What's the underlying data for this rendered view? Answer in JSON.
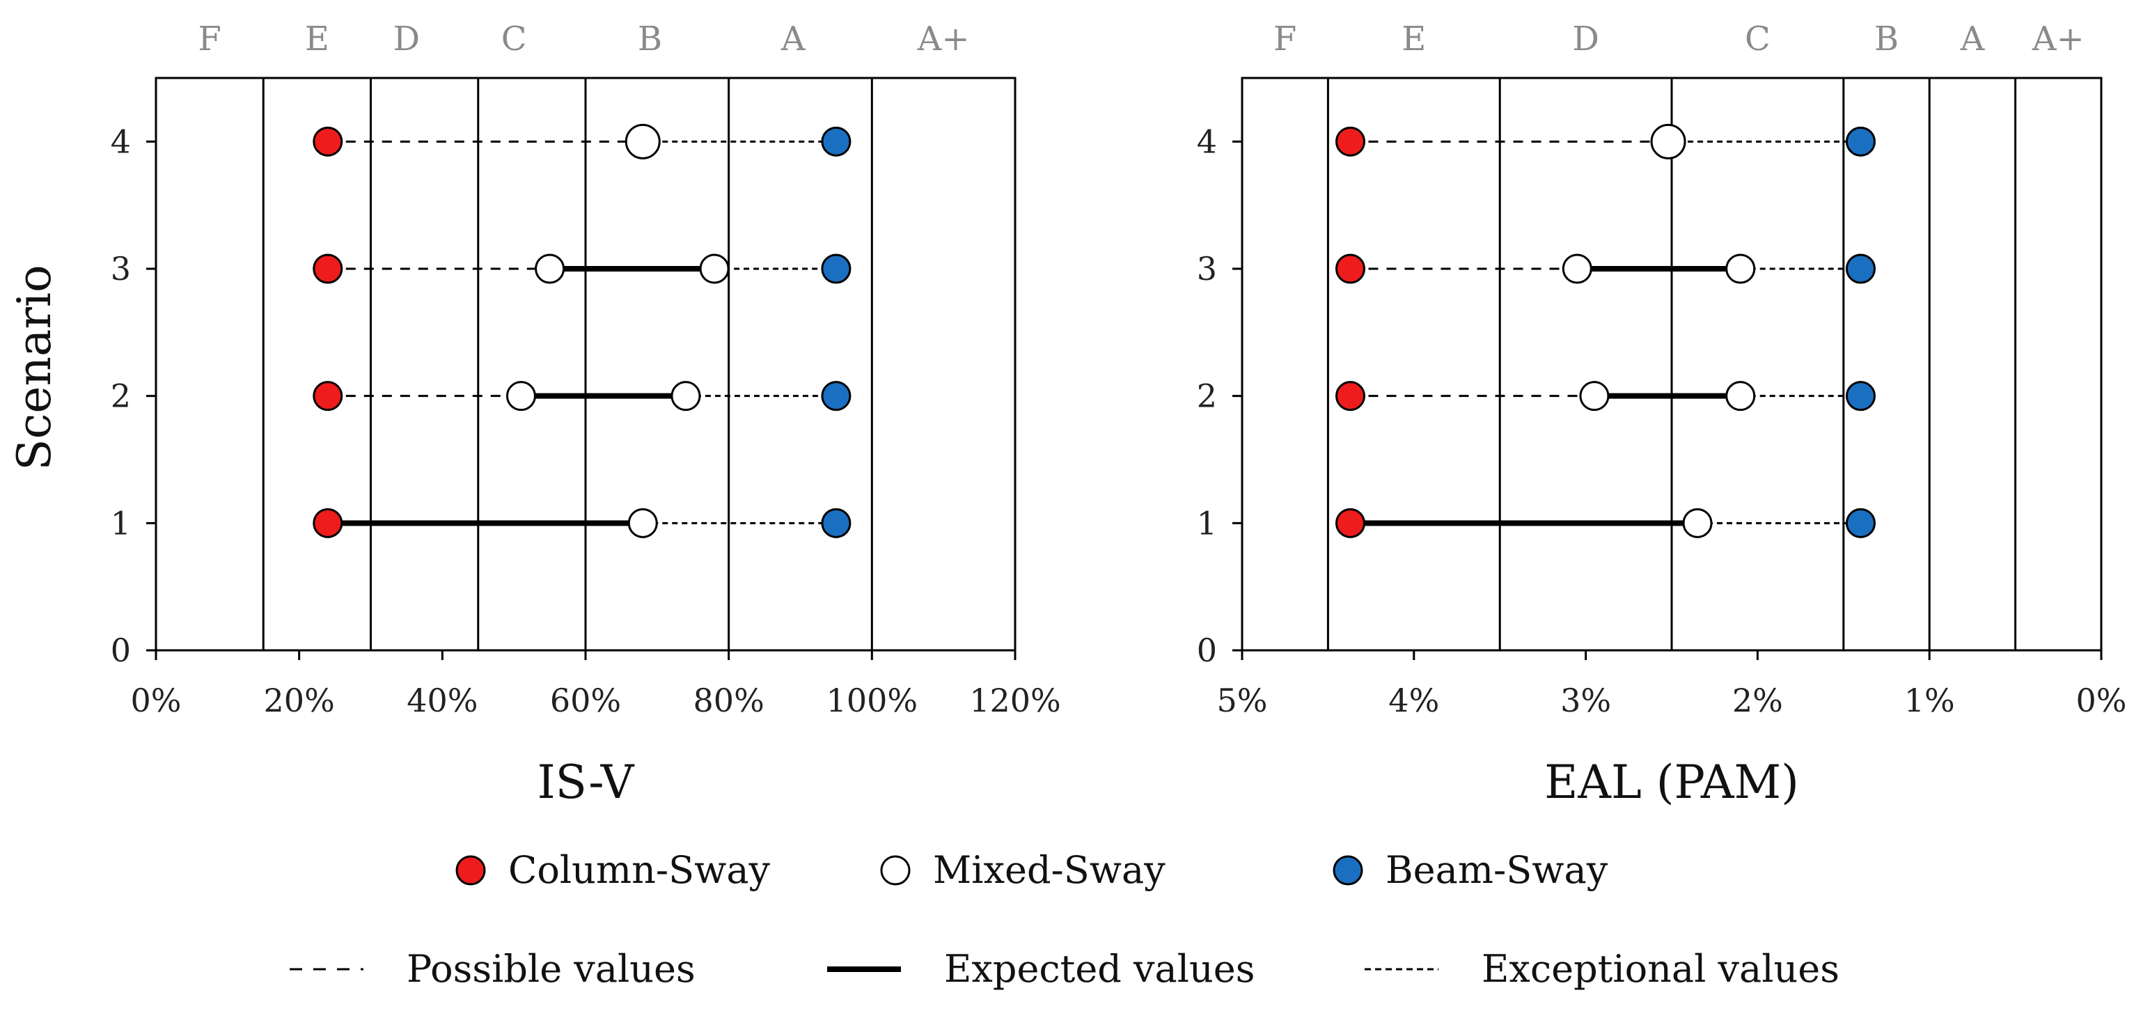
{
  "ylabel": "Scenario",
  "chart_data": [
    {
      "type": "scatter",
      "name": "is-v",
      "xlabel": "IS-V",
      "ylabel": "Scenario",
      "xlim": [
        0,
        120
      ],
      "ylim": [
        0,
        4.5
      ],
      "x_ticks": [
        0,
        20,
        40,
        60,
        80,
        100,
        120
      ],
      "x_tick_labels": [
        "0%",
        "20%",
        "40%",
        "60%",
        "80%",
        "100%",
        "120%"
      ],
      "y_ticks": [
        0,
        1,
        2,
        3,
        4
      ],
      "y_tick_labels": [
        "0",
        "1",
        "2",
        "3",
        "4"
      ],
      "class_boundaries": [
        15,
        30,
        45,
        60,
        80,
        100
      ],
      "classes": [
        {
          "label": "F",
          "x": 7.5
        },
        {
          "label": "E",
          "x": 22.5
        },
        {
          "label": "D",
          "x": 35
        },
        {
          "label": "C",
          "x": 50
        },
        {
          "label": "B",
          "x": 69
        },
        {
          "label": "A",
          "x": 89
        },
        {
          "label": "A+",
          "x": 110
        }
      ],
      "scenarios": [
        {
          "y": 1,
          "column_sway": 24,
          "mixed_sway": [
            68
          ],
          "beam_sway": 95,
          "expected": [
            24,
            68
          ],
          "possible": [],
          "exceptional": [
            68,
            95
          ]
        },
        {
          "y": 2,
          "column_sway": 24,
          "mixed_sway": [
            51,
            74
          ],
          "beam_sway": 95,
          "expected": [
            51,
            74
          ],
          "possible": [
            24,
            51
          ],
          "exceptional": [
            74,
            95
          ]
        },
        {
          "y": 3,
          "column_sway": 24,
          "mixed_sway": [
            55,
            78
          ],
          "beam_sway": 95,
          "expected": [
            55,
            78
          ],
          "possible": [
            24,
            55
          ],
          "exceptional": [
            78,
            95
          ]
        },
        {
          "y": 4,
          "column_sway": 24,
          "mixed_sway": [
            68
          ],
          "beam_sway": 95,
          "expected": [],
          "possible": [
            24,
            68
          ],
          "exceptional": [
            68,
            95
          ]
        }
      ]
    },
    {
      "type": "scatter",
      "name": "eal",
      "xlabel": "EAL (PAM)",
      "ylabel": "",
      "xlim": [
        5,
        0
      ],
      "ylim": [
        0,
        4.5
      ],
      "x_ticks": [
        5,
        4,
        3,
        2,
        1,
        0
      ],
      "x_tick_labels": [
        "5%",
        "4%",
        "3%",
        "2%",
        "1%",
        "0%"
      ],
      "y_ticks": [
        0,
        1,
        2,
        3,
        4
      ],
      "y_tick_labels": [
        "0",
        "1",
        "2",
        "3",
        "4"
      ],
      "class_boundaries": [
        4.5,
        3.5,
        2.5,
        1.5,
        1.0,
        0.5
      ],
      "classes": [
        {
          "label": "F",
          "x": 4.75
        },
        {
          "label": "E",
          "x": 4.0
        },
        {
          "label": "D",
          "x": 3.0
        },
        {
          "label": "C",
          "x": 2.0
        },
        {
          "label": "B",
          "x": 1.25
        },
        {
          "label": "A",
          "x": 0.75
        },
        {
          "label": "A+",
          "x": 0.25
        }
      ],
      "scenarios": [
        {
          "y": 1,
          "column_sway": 4.37,
          "mixed_sway": [
            2.35
          ],
          "beam_sway": 1.4,
          "expected": [
            4.37,
            2.35
          ],
          "possible": [],
          "exceptional": [
            2.35,
            1.4
          ]
        },
        {
          "y": 2,
          "column_sway": 4.37,
          "mixed_sway": [
            2.95,
            2.1
          ],
          "beam_sway": 1.4,
          "expected": [
            2.95,
            2.1
          ],
          "possible": [
            4.37,
            2.95
          ],
          "exceptional": [
            2.1,
            1.4
          ]
        },
        {
          "y": 3,
          "column_sway": 4.37,
          "mixed_sway": [
            3.05,
            2.1
          ],
          "beam_sway": 1.4,
          "expected": [
            3.05,
            2.1
          ],
          "possible": [
            4.37,
            3.05
          ],
          "exceptional": [
            2.1,
            1.4
          ]
        },
        {
          "y": 4,
          "column_sway": 4.37,
          "mixed_sway": [
            2.52
          ],
          "beam_sway": 1.4,
          "expected": [],
          "possible": [
            4.37,
            2.52
          ],
          "exceptional": [
            2.52,
            1.4
          ]
        }
      ]
    }
  ],
  "legend": {
    "markers": [
      {
        "label": "Column-Sway",
        "color": "#ee1c1c"
      },
      {
        "label": "Mixed-Sway",
        "color": "#ffffff"
      },
      {
        "label": "Beam-Sway",
        "color": "#1b6fc1"
      }
    ],
    "lines": [
      {
        "label": "Possible values",
        "style": "possible"
      },
      {
        "label": "Expected values",
        "style": "expected"
      },
      {
        "label": "Exceptional values",
        "style": "exceptional"
      }
    ]
  },
  "colors": {
    "column_sway": "#ee1c1c",
    "mixed_sway": "#ffffff",
    "beam_sway": "#1b6fc1",
    "class_text": "#8a8a8a",
    "line": "#000000"
  }
}
